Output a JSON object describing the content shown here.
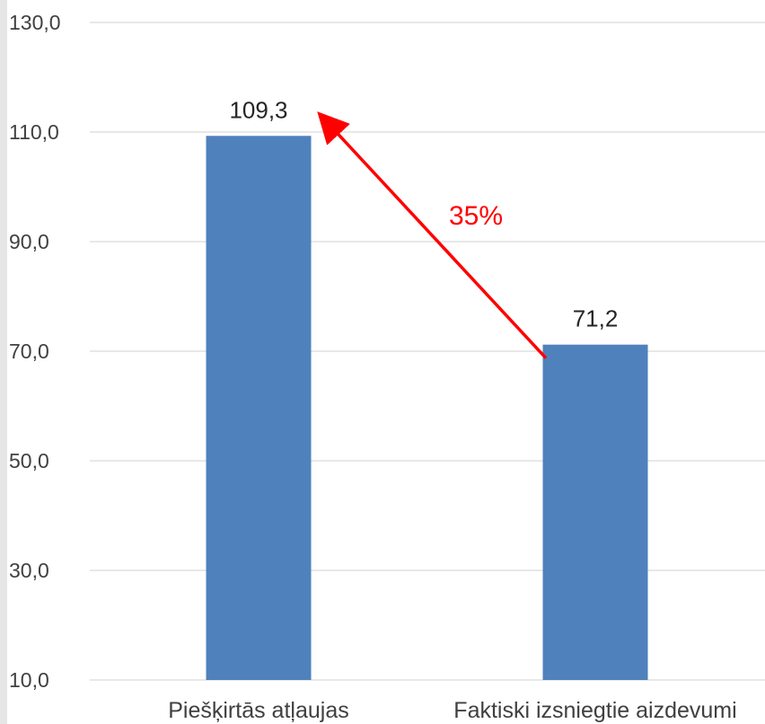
{
  "chart_data": {
    "type": "bar",
    "categories": [
      "Piešķirtās atļaujas",
      "Faktiski izsniegtie aizdevumi"
    ],
    "values": [
      109.3,
      71.2
    ],
    "value_labels": [
      "109,3",
      "71,2"
    ],
    "yticks": [
      10,
      30,
      50,
      70,
      90,
      110,
      130
    ],
    "ytick_labels": [
      "10,0",
      "30,0",
      "50,0",
      "70,0",
      "90,0",
      "110,0",
      "130,0"
    ],
    "ylim": [
      10,
      130
    ],
    "grid": true,
    "legend": "none",
    "title": "",
    "xlabel": "",
    "ylabel": "",
    "annotation": {
      "text": "35%",
      "type": "arrow",
      "from_category": 1,
      "to_category": 0,
      "color": "#ff0000"
    },
    "colors": {
      "bar": "#4f81bd",
      "grid": "#d9d9d9",
      "panel": "#ffffff",
      "frame": "#e6e6e6"
    }
  }
}
